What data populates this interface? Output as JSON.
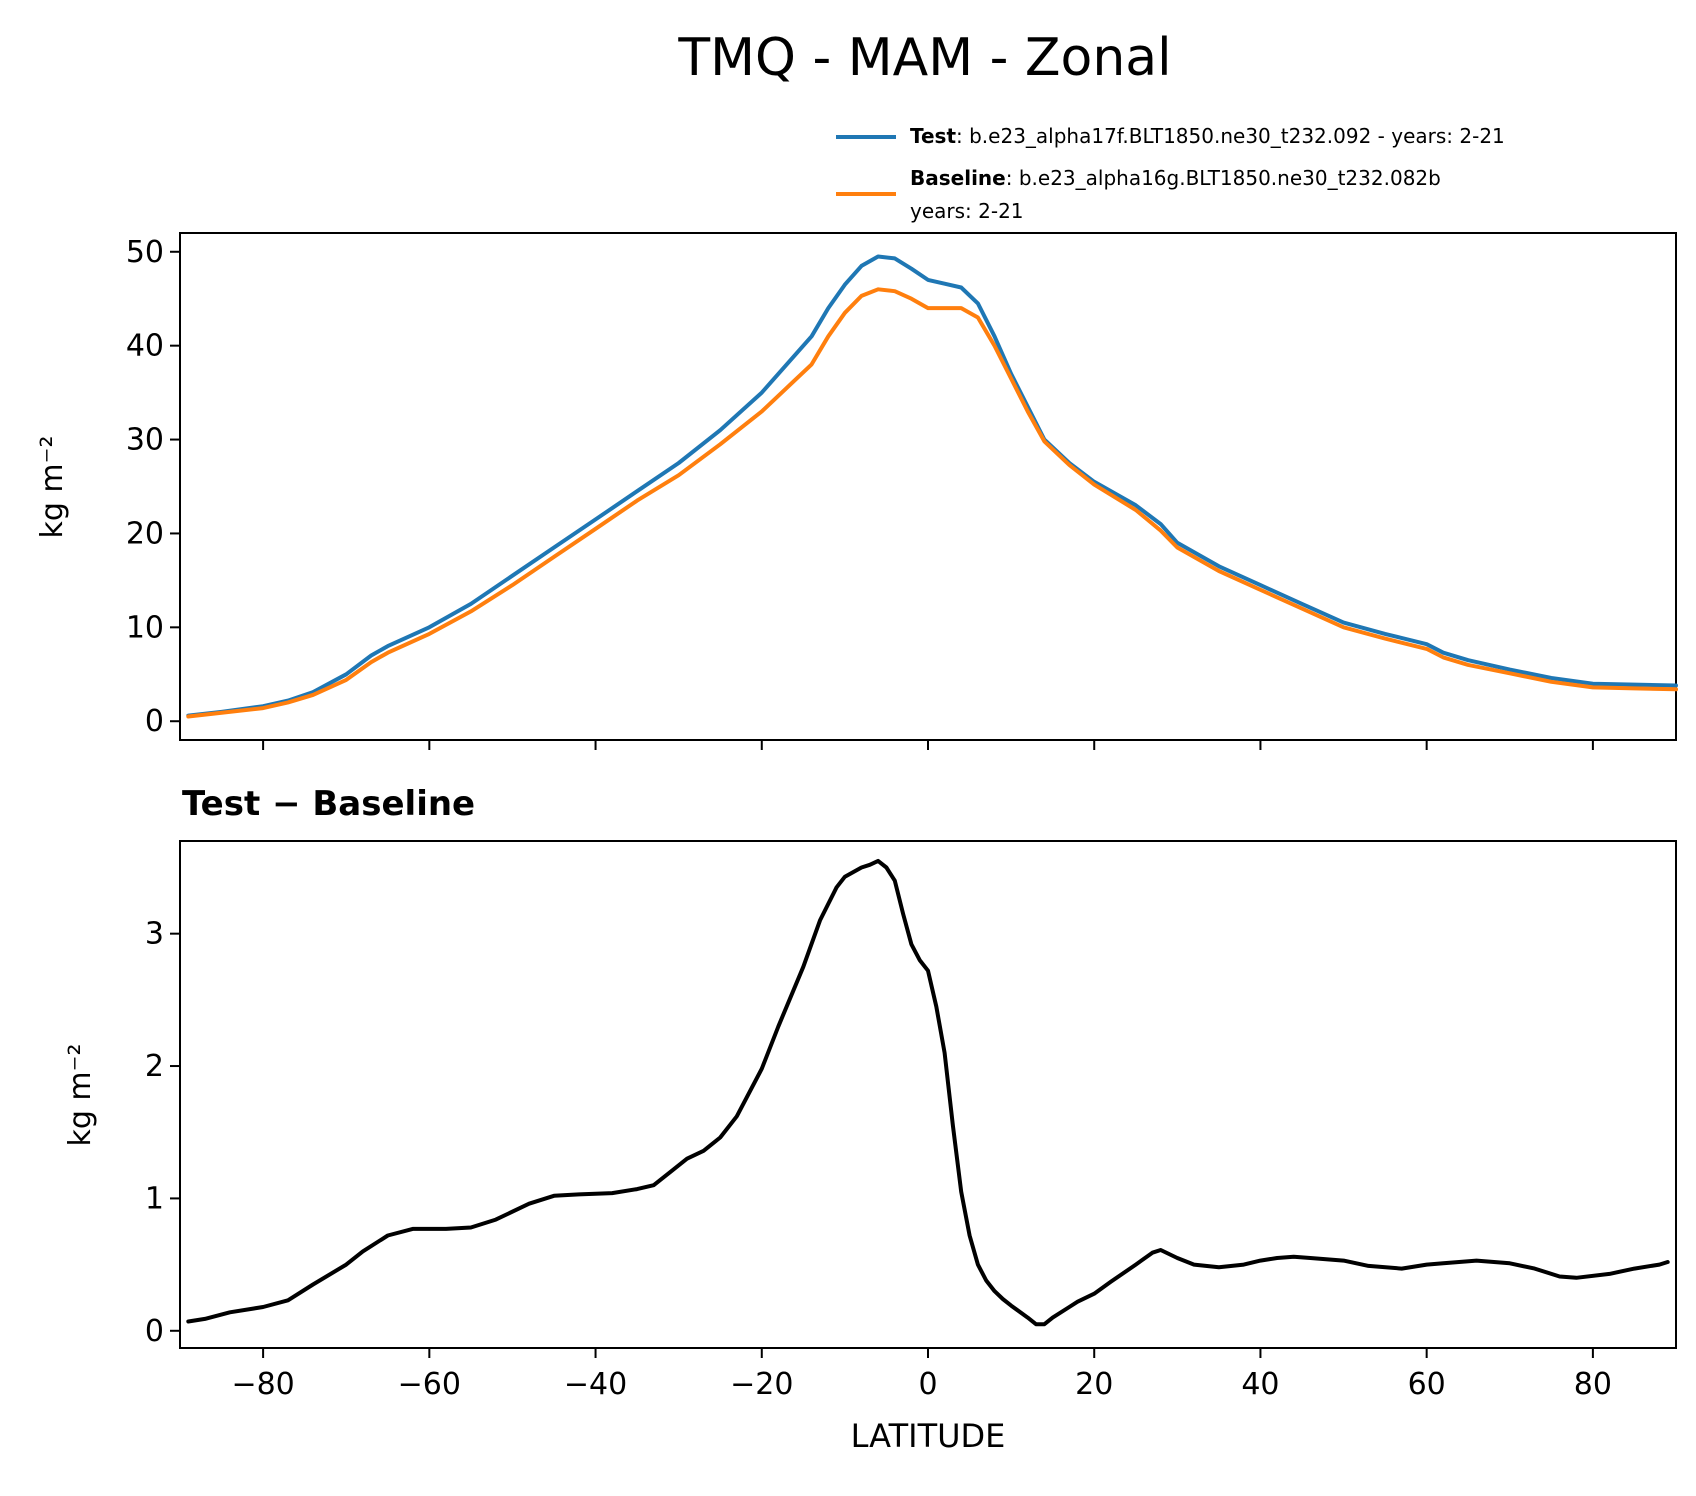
{
  "figure": {
    "title": "TMQ - MAM - Zonal"
  },
  "legend": {
    "entries": [
      {
        "label_bold": "Test",
        "label_rest": ": b.e23_alpha17f.BLT1850.ne30_t232.092 - years: 2-21",
        "color": "#1f77b4"
      },
      {
        "label_bold": "Baseline",
        "label_rest": ": b.e23_alpha16g.BLT1850.ne30_t232.082b",
        "label_line2": "years: 2-21",
        "color": "#ff7f0e"
      }
    ]
  },
  "chart_data": [
    {
      "type": "line",
      "title": "",
      "xlabel": "",
      "ylabel": "kg m⁻²",
      "xlim": [
        -90,
        90
      ],
      "ylim": [
        -2,
        52
      ],
      "yticks": [
        0,
        10,
        20,
        30,
        40,
        50
      ],
      "xticks": [
        -80,
        -60,
        -40,
        -20,
        0,
        20,
        40,
        60,
        80
      ],
      "x": [
        -89,
        -85,
        -80,
        -77,
        -74,
        -70,
        -67,
        -65,
        -60,
        -55,
        -50,
        -45,
        -40,
        -35,
        -30,
        -25,
        -20,
        -17,
        -14,
        -12,
        -10,
        -8,
        -6,
        -4,
        -2,
        0,
        2,
        4,
        6,
        8,
        10,
        12,
        14,
        17,
        20,
        25,
        28,
        30,
        35,
        40,
        45,
        50,
        55,
        60,
        62,
        65,
        70,
        75,
        80,
        85,
        90
      ],
      "series": [
        {
          "name": "Test",
          "color": "#1f77b4",
          "values": [
            0.6,
            1.0,
            1.6,
            2.2,
            3.1,
            5.0,
            7.0,
            8.0,
            10.0,
            12.5,
            15.5,
            18.5,
            21.5,
            24.5,
            27.5,
            31.0,
            35.0,
            38.0,
            41.0,
            44.0,
            46.5,
            48.5,
            49.5,
            49.3,
            48.2,
            47.0,
            46.6,
            46.2,
            44.5,
            41.0,
            37.0,
            33.5,
            30.0,
            27.5,
            25.5,
            23.0,
            21.0,
            19.0,
            16.5,
            14.5,
            12.5,
            10.5,
            9.3,
            8.2,
            7.3,
            6.5,
            5.5,
            4.6,
            4.0,
            3.9,
            3.8
          ]
        },
        {
          "name": "Baseline",
          "color": "#ff7f0e",
          "values": [
            0.5,
            0.9,
            1.4,
            2.0,
            2.8,
            4.4,
            6.3,
            7.3,
            9.3,
            11.7,
            14.5,
            17.5,
            20.5,
            23.5,
            26.2,
            29.5,
            33.0,
            35.5,
            38.0,
            41.0,
            43.5,
            45.3,
            46.0,
            45.8,
            45.0,
            44.0,
            44.0,
            44.0,
            43.0,
            40.0,
            36.5,
            33.0,
            29.8,
            27.3,
            25.2,
            22.5,
            20.3,
            18.5,
            16.0,
            14.0,
            12.0,
            10.0,
            8.8,
            7.7,
            6.8,
            6.0,
            5.1,
            4.2,
            3.6,
            3.5,
            3.4
          ]
        }
      ]
    },
    {
      "type": "line",
      "title": "Test − Baseline",
      "xlabel": "LATITUDE",
      "ylabel": "kg m⁻²",
      "xlim": [
        -90,
        90
      ],
      "ylim": [
        -0.13,
        3.7
      ],
      "yticks": [
        0,
        1,
        2,
        3
      ],
      "xticks": [
        -80,
        -60,
        -40,
        -20,
        0,
        20,
        40,
        60,
        80
      ],
      "series": [
        {
          "name": "",
          "color": "#000000",
          "x": [
            -89,
            -87,
            -84,
            -80,
            -77,
            -74,
            -70,
            -68,
            -65,
            -62,
            -58,
            -55,
            -52,
            -48,
            -45,
            -42,
            -38,
            -35,
            -33,
            -31,
            -29,
            -27,
            -25,
            -23,
            -20,
            -18,
            -15,
            -13,
            -11,
            -10,
            -8,
            -7,
            -6,
            -5,
            -4,
            -3,
            -2,
            -1,
            0,
            1,
            2,
            3,
            4,
            5,
            6,
            7,
            8,
            9,
            10,
            12,
            13,
            14,
            15,
            17,
            18,
            20,
            22,
            25,
            27,
            28,
            30,
            32,
            35,
            38,
            40,
            42,
            44,
            46,
            50,
            53,
            57,
            60,
            62,
            66,
            70,
            73,
            76,
            78,
            82,
            85,
            88,
            89
          ],
          "values": [
            0.07,
            0.09,
            0.14,
            0.18,
            0.23,
            0.35,
            0.5,
            0.6,
            0.72,
            0.77,
            0.77,
            0.78,
            0.84,
            0.96,
            1.02,
            1.03,
            1.04,
            1.07,
            1.1,
            1.2,
            1.3,
            1.36,
            1.46,
            1.62,
            1.98,
            2.3,
            2.75,
            3.1,
            3.35,
            3.43,
            3.5,
            3.52,
            3.55,
            3.5,
            3.4,
            3.15,
            2.92,
            2.8,
            2.72,
            2.45,
            2.1,
            1.55,
            1.05,
            0.72,
            0.5,
            0.38,
            0.3,
            0.24,
            0.19,
            0.1,
            0.05,
            0.05,
            0.1,
            0.18,
            0.22,
            0.28,
            0.37,
            0.5,
            0.59,
            0.61,
            0.55,
            0.5,
            0.48,
            0.5,
            0.53,
            0.55,
            0.56,
            0.55,
            0.53,
            0.49,
            0.47,
            0.5,
            0.51,
            0.53,
            0.51,
            0.47,
            0.41,
            0.4,
            0.43,
            0.47,
            0.5,
            0.52
          ]
        }
      ]
    }
  ]
}
